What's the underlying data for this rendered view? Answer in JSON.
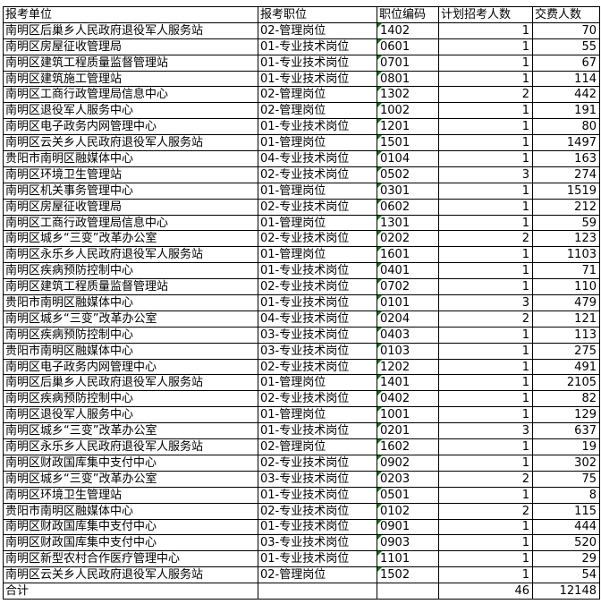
{
  "colors": {
    "background": "#ffffff",
    "text": "#000000",
    "grid_border": "#000000",
    "error_triangle_green": "#008000"
  },
  "chart_data": {
    "type": "table",
    "title": "",
    "columns": [
      "报考单位",
      "报考职位",
      "职位编码",
      "计划招考人数",
      "交费人数"
    ],
    "rows": [
      {
        "unit": "南明区后巢乡人民政府退役军人服务站",
        "position": "02-管理岗位",
        "code": "1402",
        "planned": 1,
        "paid": 70
      },
      {
        "unit": "南明区房屋征收管理局",
        "position": "01-专业技术岗位",
        "code": "0601",
        "planned": 1,
        "paid": 55
      },
      {
        "unit": "南明区建筑工程质量监督管理站",
        "position": "01-专业技术岗位",
        "code": "0701",
        "planned": 1,
        "paid": 67
      },
      {
        "unit": "南明区建筑施工管理站",
        "position": "01-专业技术岗位",
        "code": "0801",
        "planned": 1,
        "paid": 114
      },
      {
        "unit": "南明区工商行政管理局信息中心",
        "position": "02-管理岗位",
        "code": "1302",
        "planned": 2,
        "paid": 442
      },
      {
        "unit": "南明区退役军人服务中心",
        "position": "02-管理岗位",
        "code": "1002",
        "planned": 1,
        "paid": 191
      },
      {
        "unit": "南明区电子政务内网管理中心",
        "position": "01-专业技术岗位",
        "code": "1201",
        "planned": 1,
        "paid": 80
      },
      {
        "unit": "南明区云关乡人民政府退役军人服务站",
        "position": "01-管理岗位",
        "code": "1501",
        "planned": 1,
        "paid": 1497
      },
      {
        "unit": "贵阳市南明区融媒体中心",
        "position": "04-专业技术岗位",
        "code": "0104",
        "planned": 1,
        "paid": 163
      },
      {
        "unit": "南明区环境卫生管理站",
        "position": "02-专业技术岗位",
        "code": "0502",
        "planned": 3,
        "paid": 274
      },
      {
        "unit": "南明区机关事务管理中心",
        "position": "01-管理岗位",
        "code": "0301",
        "planned": 1,
        "paid": 1519
      },
      {
        "unit": "南明区房屋征收管理局",
        "position": "02-专业技术岗位",
        "code": "0602",
        "planned": 1,
        "paid": 212
      },
      {
        "unit": "南明区工商行政管理局信息中心",
        "position": "01-管理岗位",
        "code": "1301",
        "planned": 1,
        "paid": 59
      },
      {
        "unit": "南明区城乡“三变”改革办公室",
        "position": "02-专业技术岗位",
        "code": "0202",
        "planned": 2,
        "paid": 123
      },
      {
        "unit": "南明区永乐乡人民政府退役军人服务站",
        "position": "01-管理岗位",
        "code": "1601",
        "planned": 1,
        "paid": 1103
      },
      {
        "unit": "南明区疾病预防控制中心",
        "position": "01-专业技术岗位",
        "code": "0401",
        "planned": 1,
        "paid": 71
      },
      {
        "unit": "南明区建筑工程质量监督管理站",
        "position": "02-专业技术岗位",
        "code": "0702",
        "planned": 1,
        "paid": 110
      },
      {
        "unit": "贵阳市南明区融媒体中心",
        "position": "01-专业技术岗位",
        "code": "0101",
        "planned": 3,
        "paid": 479
      },
      {
        "unit": "南明区城乡“三变”改革办公室",
        "position": "04-专业技术岗位",
        "code": "0204",
        "planned": 2,
        "paid": 121
      },
      {
        "unit": "南明区疾病预防控制中心",
        "position": "03-专业技术岗位",
        "code": "0403",
        "planned": 1,
        "paid": 113
      },
      {
        "unit": "贵阳市南明区融媒体中心",
        "position": "03-专业技术岗位",
        "code": "0103",
        "planned": 1,
        "paid": 275
      },
      {
        "unit": "南明区电子政务内网管理中心",
        "position": "02-专业技术岗位",
        "code": "1202",
        "planned": 1,
        "paid": 491
      },
      {
        "unit": "南明区后巢乡人民政府退役军人服务站",
        "position": "01-管理岗位",
        "code": "1401",
        "planned": 1,
        "paid": 2105
      },
      {
        "unit": "南明区疾病预防控制中心",
        "position": "02-专业技术岗位",
        "code": "0402",
        "planned": 1,
        "paid": 82
      },
      {
        "unit": "南明区退役军人服务中心",
        "position": "01-管理岗位",
        "code": "1001",
        "planned": 1,
        "paid": 129
      },
      {
        "unit": "南明区城乡“三变”改革办公室",
        "position": "01-专业技术岗位",
        "code": "0201",
        "planned": 3,
        "paid": 637
      },
      {
        "unit": "南明区永乐乡人民政府退役军人服务站",
        "position": "02-管理岗位",
        "code": "1602",
        "planned": 1,
        "paid": 19
      },
      {
        "unit": "南明区财政国库集中支付中心",
        "position": "02-专业技术岗位",
        "code": "0902",
        "planned": 1,
        "paid": 302
      },
      {
        "unit": "南明区城乡“三变”改革办公室",
        "position": "03-专业技术岗位",
        "code": "0203",
        "planned": 2,
        "paid": 75
      },
      {
        "unit": "南明区环境卫生管理站",
        "position": "01-专业技术岗位",
        "code": "0501",
        "planned": 1,
        "paid": 8
      },
      {
        "unit": "贵阳市南明区融媒体中心",
        "position": "02-专业技术岗位",
        "code": "0102",
        "planned": 2,
        "paid": 115
      },
      {
        "unit": "南明区财政国库集中支付中心",
        "position": "01-专业技术岗位",
        "code": "0901",
        "planned": 1,
        "paid": 444
      },
      {
        "unit": "南明区财政国库集中支付中心",
        "position": "03-专业技术岗位",
        "code": "0903",
        "planned": 1,
        "paid": 520
      },
      {
        "unit": "南明区新型农村合作医疗管理中心",
        "position": "01-专业技术岗位",
        "code": "1101",
        "planned": 1,
        "paid": 29
      },
      {
        "unit": "南明区云关乡人民政府退役军人服务站",
        "position": "02-管理岗位",
        "code": "1502",
        "planned": 1,
        "paid": 54
      }
    ],
    "total": {
      "label": "合计",
      "position": "",
      "code": "",
      "planned": 46,
      "paid": 12148
    },
    "notes": "每个职位编码单元格左上角有绿色三角(文本格式数字指示符)"
  }
}
